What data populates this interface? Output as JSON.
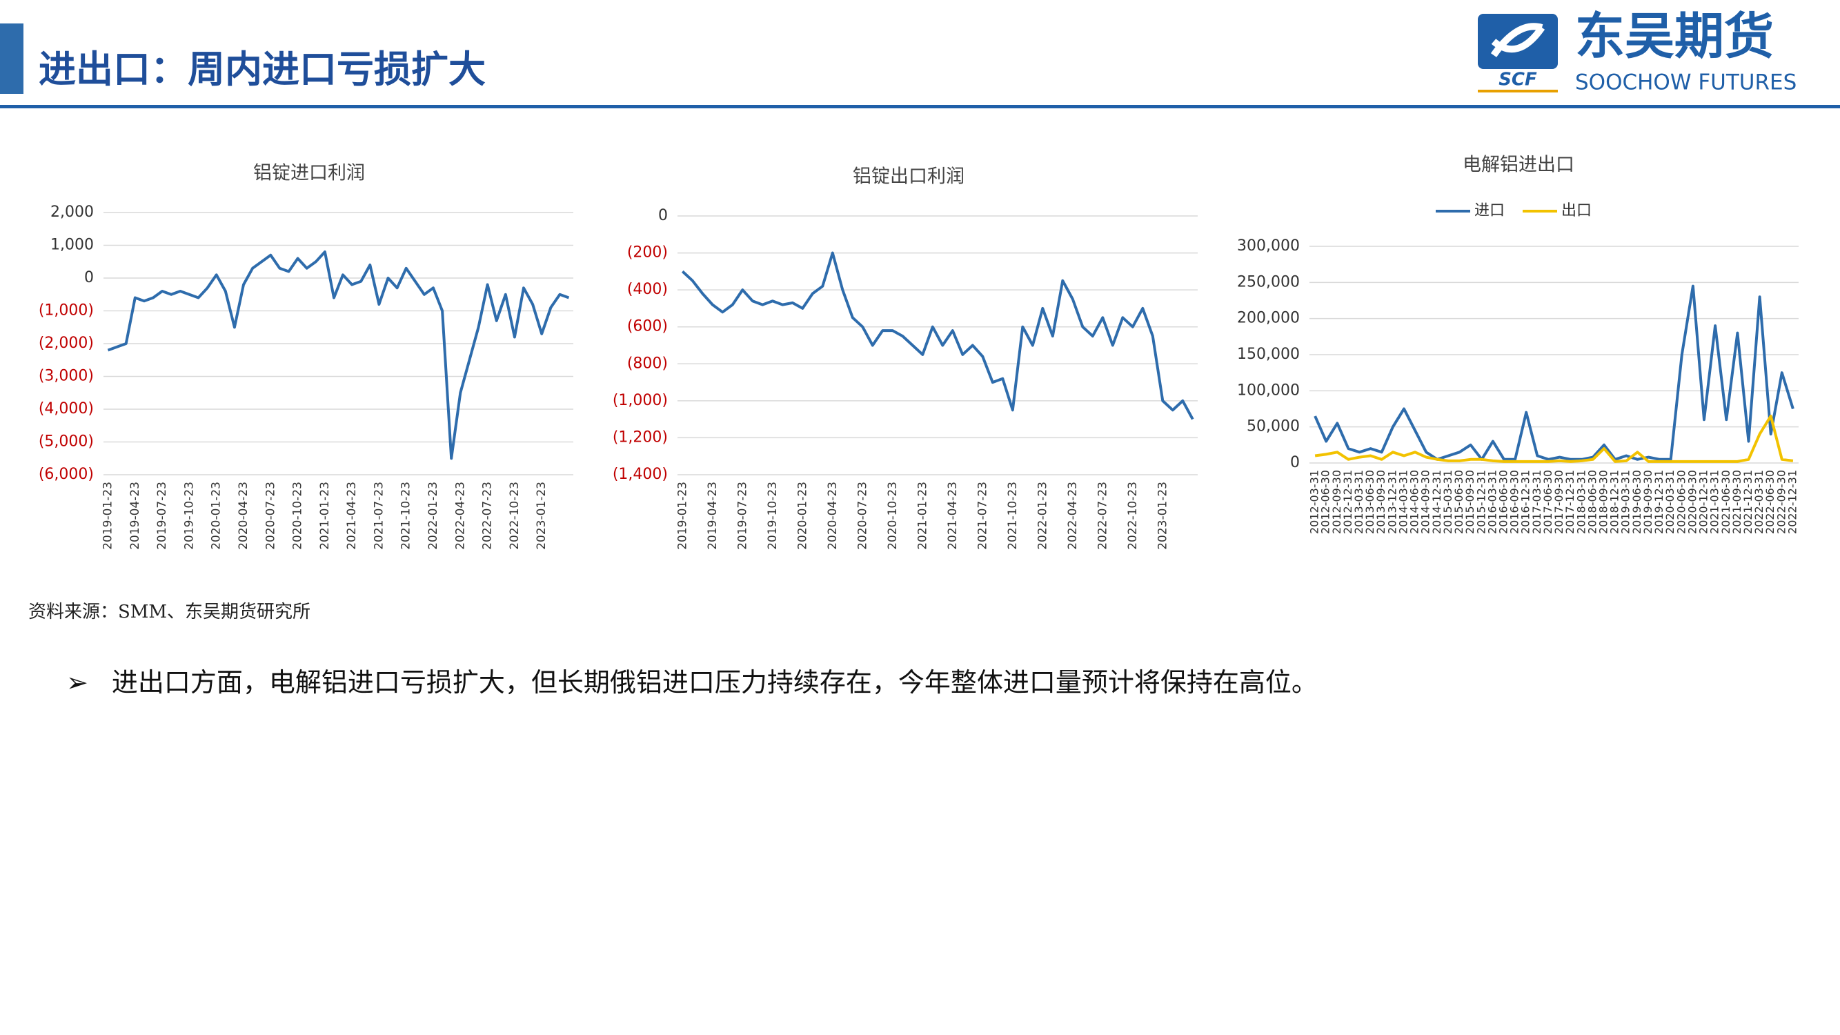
{
  "header": {
    "title": "进出口：周内进口亏损扩大"
  },
  "logo": {
    "mark": "SCF",
    "name": "东吴期货",
    "en": "SOOCHOW FUTURES"
  },
  "source": "资料来源：SMM、东吴期货研究所",
  "bullet": "进出口方面，电解铝进口亏损扩大，但长期俄铝进口压力持续存在，今年整体进口量预计将保持在高位。",
  "chart_data": [
    {
      "type": "line",
      "title": "铝锭进口利润",
      "color": "#2e6cac",
      "negative_tick_color": "#c00000",
      "grid": true,
      "categories": [
        "2019-01-23",
        null,
        null,
        "2019-04-23",
        null,
        null,
        "2019-07-23",
        null,
        null,
        "2019-10-23",
        null,
        null,
        "2020-01-23",
        null,
        null,
        "2020-04-23",
        null,
        null,
        "2020-07-23",
        null,
        null,
        "2020-10-23",
        null,
        null,
        "2021-01-23",
        null,
        null,
        "2021-04-23",
        null,
        null,
        "2021-07-23",
        null,
        null,
        "2021-10-23",
        null,
        null,
        "2022-01-23",
        null,
        null,
        "2022-04-23",
        null,
        null,
        "2022-07-23",
        null,
        null,
        "2022-10-23",
        null,
        null,
        "2023-01-23",
        null,
        null,
        null
      ],
      "values": [
        -2200,
        -2100,
        -2000,
        -600,
        -700,
        -600,
        -400,
        -500,
        -400,
        -500,
        -600,
        -300,
        100,
        -400,
        -1500,
        -200,
        300,
        500,
        700,
        300,
        200,
        600,
        300,
        500,
        800,
        -600,
        100,
        -200,
        -100,
        400,
        -800,
        0,
        -300,
        300,
        -100,
        -500,
        -300,
        -1000,
        -5500,
        -3500,
        -2500,
        -1500,
        -200,
        -1300,
        -500,
        -1800,
        -300,
        -800,
        -1700,
        -900,
        -500,
        -600
      ],
      "ylim": [
        -6000,
        2000
      ],
      "yticks": [
        {
          "value": 2000,
          "label": "2,000"
        },
        {
          "value": 1000,
          "label": "1,000"
        },
        0,
        {
          "value": -1000,
          "label": "(1,000)"
        },
        {
          "value": -2000,
          "label": "(2,000)"
        },
        {
          "value": -3000,
          "label": "(3,000)"
        },
        {
          "value": -4000,
          "label": "(4,000)"
        },
        {
          "value": -5000,
          "label": "(5,000)"
        },
        {
          "value": -6000,
          "label": "(6,000)"
        }
      ]
    },
    {
      "type": "line",
      "title": "铝锭出口利润",
      "color": "#2e6cac",
      "negative_tick_color": "#c00000",
      "grid": true,
      "categories": [
        "2019-01-23",
        null,
        null,
        "2019-04-23",
        null,
        null,
        "2019-07-23",
        null,
        null,
        "2019-10-23",
        null,
        null,
        "2020-01-23",
        null,
        null,
        "2020-04-23",
        null,
        null,
        "2020-07-23",
        null,
        null,
        "2020-10-23",
        null,
        null,
        "2021-01-23",
        null,
        null,
        "2021-04-23",
        null,
        null,
        "2021-07-23",
        null,
        null,
        "2021-10-23",
        null,
        null,
        "2022-01-23",
        null,
        null,
        "2022-04-23",
        null,
        null,
        "2022-07-23",
        null,
        null,
        "2022-10-23",
        null,
        null,
        "2023-01-23",
        null,
        null,
        null
      ],
      "values": [
        -300,
        -350,
        -420,
        -480,
        -520,
        -480,
        -400,
        -460,
        -480,
        -460,
        -480,
        -470,
        -500,
        -420,
        -380,
        -200,
        -400,
        -550,
        -600,
        -700,
        -620,
        -620,
        -650,
        -700,
        -750,
        -600,
        -700,
        -620,
        -750,
        -700,
        -760,
        -900,
        -880,
        -1050,
        -600,
        -700,
        -500,
        -650,
        -350,
        -450,
        -600,
        -650,
        -550,
        -700,
        -550,
        -600,
        -500,
        -650,
        -1000,
        -1050,
        -1000,
        -1100
      ],
      "ylim": [
        -1400,
        0
      ],
      "yticks": [
        0,
        {
          "value": -200,
          "label": "(200)"
        },
        {
          "value": -400,
          "label": "(400)"
        },
        {
          "value": -600,
          "label": "(600)"
        },
        {
          "value": -800,
          "label": "(800)"
        },
        {
          "value": -1000,
          "label": "(1,000)"
        },
        {
          "value": -1200,
          "label": "(1,200)"
        },
        {
          "value": -1400,
          "label": "(1,400)"
        }
      ]
    },
    {
      "type": "line",
      "title": "电解铝进出口",
      "grid": true,
      "legend": "top",
      "categories": [
        "2012-03-31",
        "2012-06-30",
        "2012-09-30",
        "2012-12-31",
        "2013-03-31",
        "2013-06-30",
        "2013-09-30",
        "2013-12-31",
        "2014-03-31",
        "2014-06-30",
        "2014-09-30",
        "2014-12-31",
        "2015-03-31",
        "2015-06-30",
        "2015-09-30",
        "2015-12-31",
        "2016-03-31",
        "2016-06-30",
        "2016-09-30",
        "2016-12-31",
        "2017-03-31",
        "2017-06-30",
        "2017-09-30",
        "2017-12-31",
        "2018-03-31",
        "2018-06-30",
        "2018-09-30",
        "2018-12-31",
        "2019-03-31",
        "2019-06-30",
        "2019-09-30",
        "2019-12-31",
        "2020-03-31",
        "2020-06-30",
        "2020-09-30",
        "2020-12-31",
        "2021-03-31",
        "2021-06-30",
        "2021-09-30",
        "2021-12-31",
        "2022-03-31",
        "2022-06-30",
        "2022-09-30",
        "2022-12-31"
      ],
      "series": [
        {
          "name": "进口",
          "color": "#2e6cac",
          "values": [
            65000,
            30000,
            55000,
            20000,
            15000,
            20000,
            15000,
            50000,
            75000,
            45000,
            15000,
            5000,
            10000,
            15000,
            25000,
            5000,
            30000,
            5000,
            5000,
            70000,
            10000,
            5000,
            8000,
            5000,
            5000,
            8000,
            25000,
            5000,
            10000,
            5000,
            8000,
            5000,
            5000,
            150000,
            245000,
            60000,
            190000,
            60000,
            180000,
            30000,
            230000,
            40000,
            125000,
            75000
          ]
        },
        {
          "name": "出口",
          "color": "#f2c200",
          "values": [
            10000,
            12000,
            15000,
            5000,
            8000,
            10000,
            5000,
            15000,
            10000,
            15000,
            8000,
            5000,
            3000,
            3000,
            5000,
            5000,
            3000,
            2000,
            2000,
            2000,
            2000,
            2000,
            3000,
            2000,
            3000,
            5000,
            20000,
            2000,
            3000,
            15000,
            2000,
            2000,
            2000,
            2000,
            2000,
            2000,
            2000,
            2000,
            2000,
            5000,
            40000,
            65000,
            5000,
            3000
          ]
        }
      ],
      "ylim": [
        0,
        300000
      ],
      "yticks": [
        0,
        {
          "value": 50000,
          "label": "50,000"
        },
        {
          "value": 100000,
          "label": "100,000"
        },
        {
          "value": 150000,
          "label": "150,000"
        },
        {
          "value": 200000,
          "label": "200,000"
        },
        {
          "value": 250000,
          "label": "250,000"
        },
        {
          "value": 300000,
          "label": "300,000"
        }
      ]
    }
  ]
}
